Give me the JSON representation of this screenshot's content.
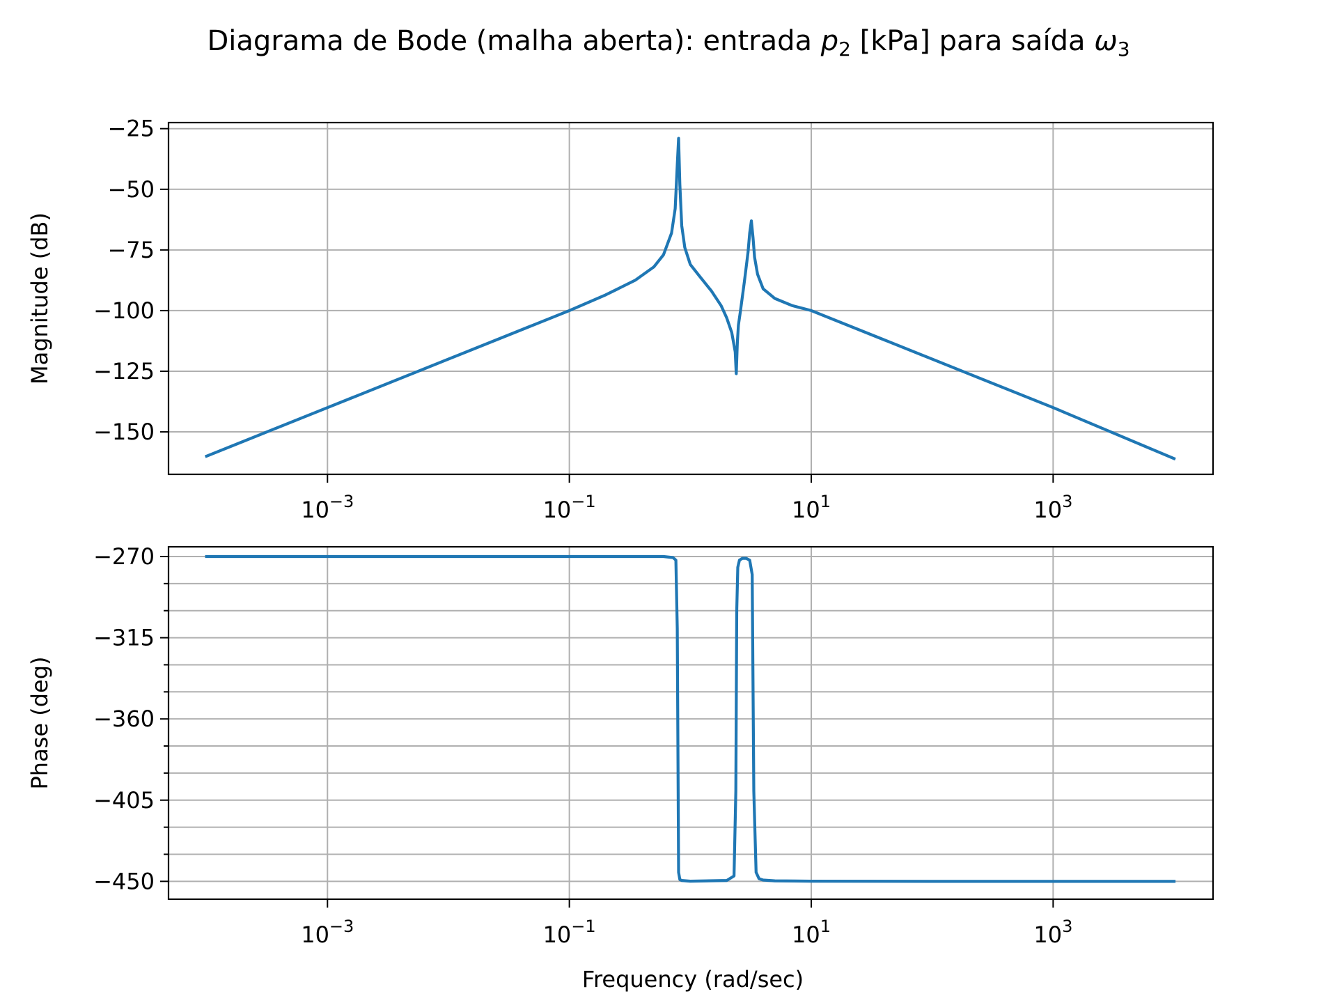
{
  "chart_data": {
    "type": "line",
    "title": {
      "prefix": "Diagrama de Bode (malha aberta): entrada ",
      "input_symbol": "p",
      "input_sub": "2",
      "middle": " [kPa] para saída ",
      "output_symbol": "ω",
      "output_sub": "3"
    },
    "xlabel": "Frequency (rad/sec)",
    "xscale": "log",
    "xlim": [
      4.85e-05,
      21000
    ],
    "xticks": [
      {
        "value": 0.001,
        "base": "10",
        "exp": "−3"
      },
      {
        "value": 0.1,
        "base": "10",
        "exp": "−1"
      },
      {
        "value": 10,
        "base": "10",
        "exp": "1"
      },
      {
        "value": 1000,
        "base": "10",
        "exp": "3"
      }
    ],
    "grid": true,
    "color": "#1f77b4",
    "panels": [
      {
        "name": "magnitude",
        "ylabel": "Magnitude (dB)",
        "ylim": [
          -167.5,
          -22.5
        ],
        "yticks": [
          {
            "value": -25,
            "label": "−25"
          },
          {
            "value": -50,
            "label": "−50"
          },
          {
            "value": -75,
            "label": "−75"
          },
          {
            "value": -100,
            "label": "−100"
          },
          {
            "value": -125,
            "label": "−125"
          },
          {
            "value": -150,
            "label": "−150"
          }
        ],
        "yminor": [],
        "series": [
          {
            "x": [
              0.0001,
              0.001,
              0.01,
              0.1,
              0.2,
              0.35,
              0.5,
              0.6,
              0.7,
              0.75,
              0.78,
              0.8,
              0.82,
              0.85,
              0.9,
              1.0,
              1.2,
              1.5,
              1.8,
              2.0,
              2.2,
              2.35,
              2.4,
              2.45,
              2.5,
              2.6,
              2.8,
              3.0,
              3.1,
              3.2,
              3.3,
              3.4,
              3.6,
              4.0,
              5.0,
              7.0,
              10,
              100,
              1000,
              10000
            ],
            "y": [
              -160,
              -140,
              -120,
              -100,
              -93.5,
              -87.5,
              -82,
              -77,
              -68,
              -58,
              -40,
              -29,
              -48,
              -65,
              -74,
              -81,
              -86,
              -92,
              -98,
              -103,
              -109,
              -117,
              -126,
              -113,
              -106,
              -100,
              -88,
              -76,
              -68,
              -63,
              -70,
              -78,
              -85,
              -91,
              -95,
              -98,
              -100,
              -120,
              -140,
              -161
            ]
          }
        ]
      },
      {
        "name": "phase",
        "ylabel": "Phase (deg)",
        "ylim": [
          -459.9,
          -264.6
        ],
        "yticks": [
          {
            "value": -270,
            "label": "−270"
          },
          {
            "value": -315,
            "label": "−315"
          },
          {
            "value": -360,
            "label": "−360"
          },
          {
            "value": -405,
            "label": "−405"
          },
          {
            "value": -450,
            "label": "−450"
          }
        ],
        "yminor": [
          -285,
          -300,
          -330,
          -345,
          -375,
          -390,
          -420,
          -435
        ],
        "series": [
          {
            "x": [
              0.0001,
              0.1,
              0.6,
              0.72,
              0.76,
              0.78,
              0.8,
              0.82,
              0.85,
              1.0,
              2.0,
              2.3,
              2.38,
              2.42,
              2.47,
              2.55,
              2.7,
              2.9,
              3.1,
              3.25,
              3.35,
              3.5,
              3.7,
              4.0,
              5.0,
              10,
              100,
              1000,
              10000
            ],
            "y": [
              -270,
              -270,
              -270,
              -270.6,
              -272,
              -310,
              -445,
              -449,
              -449.5,
              -449.9,
              -449.5,
              -447,
              -400,
              -300,
              -276,
              -272,
              -271,
              -271,
              -272,
              -280,
              -400,
              -445,
              -448.5,
              -449.3,
              -449.7,
              -449.9,
              -450,
              -450,
              -450
            ]
          }
        ]
      }
    ]
  }
}
